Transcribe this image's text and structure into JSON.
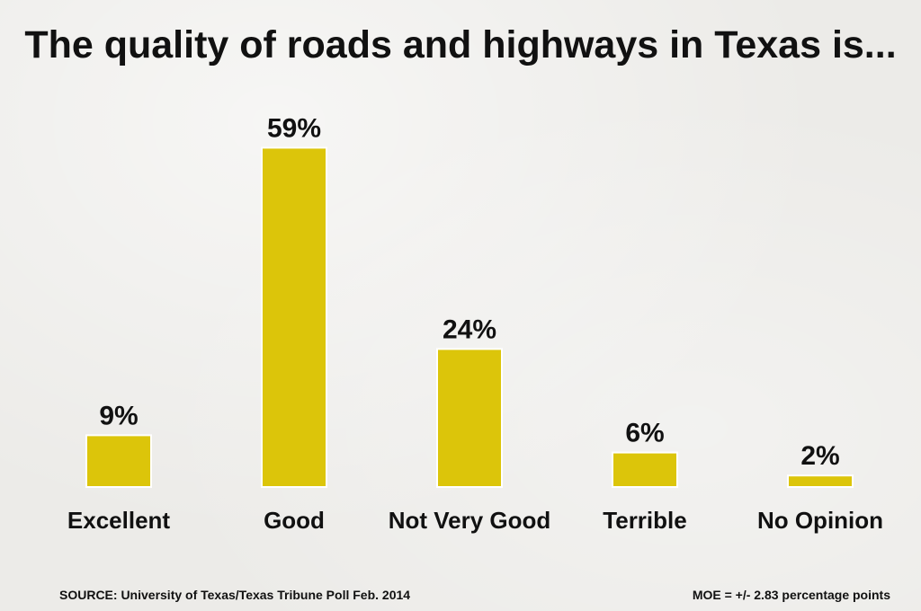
{
  "chart_data": {
    "type": "bar",
    "title": "The quality of roads and highways in Texas is...",
    "categories": [
      "Excellent",
      "Good",
      "Not Very Good",
      "Terrible",
      "No Opinion"
    ],
    "values": [
      9,
      59,
      24,
      6,
      2
    ],
    "value_labels": [
      "9%",
      "59%",
      "24%",
      "6%",
      "2%"
    ],
    "bar_color": "#dcc50a",
    "grid": false,
    "xlabel": "",
    "ylabel": ""
  },
  "footer": {
    "source": "SOURCE: University of Texas/Texas Tribune Poll Feb. 2014",
    "moe": "MOE = +/- 2.83 percentage points"
  }
}
